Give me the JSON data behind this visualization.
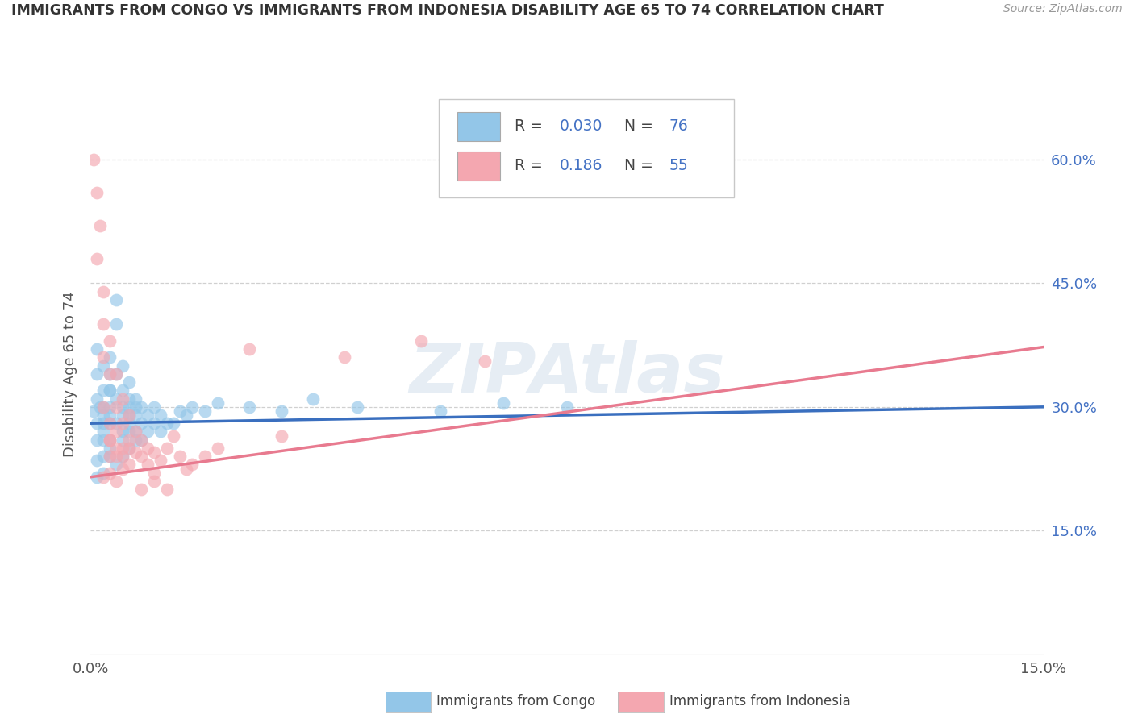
{
  "title": "IMMIGRANTS FROM CONGO VS IMMIGRANTS FROM INDONESIA DISABILITY AGE 65 TO 74 CORRELATION CHART",
  "source": "Source: ZipAtlas.com",
  "ylabel": "Disability Age 65 to 74",
  "xlim": [
    0.0,
    0.15
  ],
  "ylim": [
    0.0,
    0.68
  ],
  "x_ticks": [
    0.0,
    0.15
  ],
  "x_tick_labels": [
    "0.0%",
    "15.0%"
  ],
  "y_ticks_right": [
    0.15,
    0.3,
    0.45,
    0.6
  ],
  "y_tick_labels_right": [
    "15.0%",
    "30.0%",
    "45.0%",
    "60.0%"
  ],
  "grid_color": "#cccccc",
  "background_color": "#ffffff",
  "watermark": "ZIPAtlas",
  "series1_color": "#93c6e8",
  "series2_color": "#f4a7b0",
  "series1_label": "Immigrants from Congo",
  "series2_label": "Immigrants from Indonesia",
  "series1_line_color": "#3a6fbf",
  "series2_line_color": "#e87a8f",
  "congo_intercept": 0.28,
  "congo_slope": 0.133,
  "indonesia_intercept": 0.215,
  "indonesia_slope": 1.05,
  "congo_x": [
    0.0005,
    0.001,
    0.001,
    0.001,
    0.001,
    0.001,
    0.0015,
    0.002,
    0.002,
    0.002,
    0.002,
    0.002,
    0.002,
    0.002,
    0.002,
    0.003,
    0.003,
    0.003,
    0.003,
    0.003,
    0.003,
    0.003,
    0.003,
    0.003,
    0.004,
    0.004,
    0.004,
    0.004,
    0.004,
    0.005,
    0.005,
    0.005,
    0.005,
    0.005,
    0.005,
    0.006,
    0.006,
    0.006,
    0.006,
    0.006,
    0.006,
    0.007,
    0.007,
    0.007,
    0.007,
    0.008,
    0.008,
    0.008,
    0.009,
    0.009,
    0.01,
    0.01,
    0.011,
    0.011,
    0.012,
    0.013,
    0.014,
    0.015,
    0.016,
    0.018,
    0.02,
    0.025,
    0.03,
    0.035,
    0.042,
    0.055,
    0.065,
    0.075,
    0.001,
    0.002,
    0.003,
    0.004,
    0.005,
    0.006,
    0.007,
    0.001
  ],
  "congo_y": [
    0.295,
    0.37,
    0.34,
    0.31,
    0.28,
    0.26,
    0.3,
    0.32,
    0.3,
    0.28,
    0.26,
    0.24,
    0.35,
    0.29,
    0.27,
    0.34,
    0.32,
    0.3,
    0.28,
    0.26,
    0.24,
    0.32,
    0.36,
    0.29,
    0.43,
    0.4,
    0.34,
    0.31,
    0.28,
    0.35,
    0.32,
    0.29,
    0.27,
    0.3,
    0.26,
    0.31,
    0.29,
    0.27,
    0.33,
    0.3,
    0.28,
    0.31,
    0.29,
    0.27,
    0.3,
    0.3,
    0.28,
    0.26,
    0.29,
    0.27,
    0.3,
    0.28,
    0.29,
    0.27,
    0.28,
    0.28,
    0.295,
    0.29,
    0.3,
    0.295,
    0.305,
    0.3,
    0.295,
    0.31,
    0.3,
    0.295,
    0.305,
    0.3,
    0.235,
    0.22,
    0.25,
    0.23,
    0.24,
    0.25,
    0.26,
    0.215
  ],
  "indonesia_x": [
    0.0005,
    0.001,
    0.001,
    0.0015,
    0.002,
    0.002,
    0.002,
    0.002,
    0.003,
    0.003,
    0.003,
    0.003,
    0.003,
    0.004,
    0.004,
    0.004,
    0.004,
    0.005,
    0.005,
    0.005,
    0.006,
    0.006,
    0.006,
    0.007,
    0.007,
    0.008,
    0.008,
    0.009,
    0.009,
    0.01,
    0.01,
    0.011,
    0.012,
    0.013,
    0.014,
    0.015,
    0.016,
    0.018,
    0.02,
    0.025,
    0.03,
    0.04,
    0.052,
    0.062,
    0.002,
    0.003,
    0.004,
    0.005,
    0.003,
    0.004,
    0.005,
    0.006,
    0.008,
    0.01,
    0.012
  ],
  "indonesia_y": [
    0.6,
    0.56,
    0.48,
    0.52,
    0.44,
    0.4,
    0.36,
    0.3,
    0.38,
    0.34,
    0.28,
    0.26,
    0.24,
    0.34,
    0.3,
    0.27,
    0.24,
    0.31,
    0.28,
    0.25,
    0.29,
    0.26,
    0.23,
    0.27,
    0.245,
    0.26,
    0.24,
    0.25,
    0.23,
    0.245,
    0.22,
    0.235,
    0.25,
    0.265,
    0.24,
    0.225,
    0.23,
    0.24,
    0.25,
    0.37,
    0.265,
    0.36,
    0.38,
    0.355,
    0.215,
    0.22,
    0.21,
    0.225,
    0.26,
    0.25,
    0.24,
    0.25,
    0.2,
    0.21,
    0.2
  ]
}
